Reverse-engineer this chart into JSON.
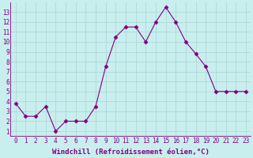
{
  "x": [
    0,
    1,
    2,
    3,
    4,
    5,
    6,
    7,
    8,
    9,
    10,
    11,
    12,
    13,
    14,
    15,
    16,
    17,
    18,
    19,
    20,
    21,
    22,
    23
  ],
  "y": [
    3.8,
    2.5,
    2.5,
    3.5,
    1.0,
    2.0,
    2.0,
    2.0,
    3.5,
    7.5,
    10.5,
    11.5,
    11.5,
    10.0,
    12.0,
    13.5,
    12.0,
    10.0,
    8.8,
    7.5,
    5.0,
    5.0,
    5.0,
    5.0
  ],
  "line_color": "#800080",
  "marker": "D",
  "marker_color": "#800080",
  "xlabel": "Windchill (Refroidissement éolien,°C)",
  "xlim": [
    -0.5,
    23.5
  ],
  "ylim": [
    0.5,
    14
  ],
  "yticks": [
    1,
    2,
    3,
    4,
    5,
    6,
    7,
    8,
    9,
    10,
    11,
    12,
    13
  ],
  "xticks": [
    0,
    1,
    2,
    3,
    4,
    5,
    6,
    7,
    8,
    9,
    10,
    11,
    12,
    13,
    14,
    15,
    16,
    17,
    18,
    19,
    20,
    21,
    22,
    23
  ],
  "background_color": "#c8eeee",
  "grid_color": "#b0d8d8",
  "tick_color": "#800080",
  "label_color": "#800080",
  "font_size": 5.5,
  "xlabel_font_size": 6.5
}
